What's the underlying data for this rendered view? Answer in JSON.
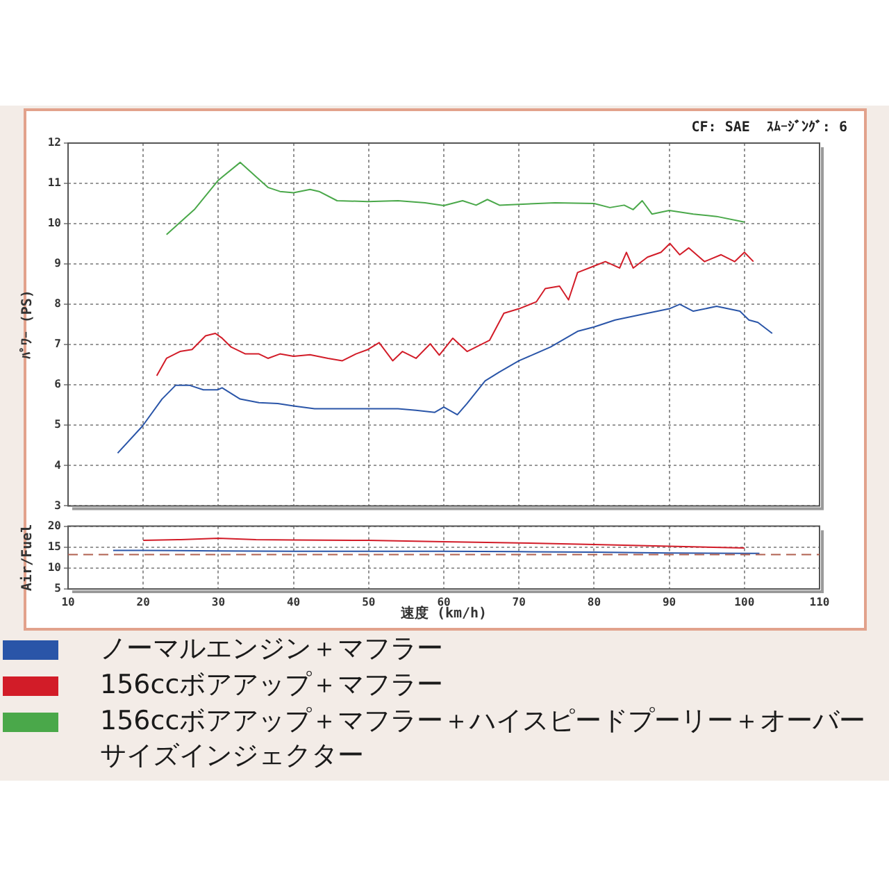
{
  "chart_data": [
    {
      "type": "line",
      "annotations": [
        "CF: SAE  ｽﾑｰｼﾞﾝｸﾞ: 6"
      ],
      "ylabel": "ﾊﾟﾜｰ (PS)",
      "xlim": [
        10,
        110
      ],
      "xticks": [
        10,
        20,
        30,
        40,
        50,
        60,
        70,
        80,
        90,
        100,
        110
      ],
      "ylim": [
        3,
        12
      ],
      "yticks": [
        3,
        4,
        5,
        6,
        7,
        8,
        9,
        10,
        11,
        12
      ],
      "tick_labels": "y",
      "grid": true,
      "legend": "bottom",
      "series": [
        {
          "name": "ノーマルエンジン＋マフラー",
          "color": "#2a55a8",
          "x": [
            16.6,
            19.9,
            22.5,
            24.3,
            26.2,
            28,
            29.9,
            30.5,
            32.9,
            35.4,
            37.9,
            40,
            42.8,
            46.5,
            50.2,
            53.9,
            56.3,
            58.8,
            60,
            61.8,
            63.1,
            65.5,
            67.4,
            70,
            74.2,
            77.8,
            80,
            82.8,
            87.1,
            90,
            91.4,
            93.2,
            96.3,
            99.4,
            100.6,
            101.8,
            103.7
          ],
          "values": [
            4.31,
            4.98,
            5.65,
            5.99,
            5.99,
            5.88,
            5.88,
            5.93,
            5.65,
            5.56,
            5.54,
            5.48,
            5.41,
            5.41,
            5.41,
            5.41,
            5.37,
            5.32,
            5.45,
            5.26,
            5.54,
            6.1,
            6.32,
            6.6,
            6.94,
            7.33,
            7.44,
            7.61,
            7.78,
            7.89,
            8.0,
            7.83,
            7.95,
            7.83,
            7.61,
            7.55,
            7.28
          ]
        },
        {
          "name": "156ccボアアップ＋マフラー",
          "color": "#d21c28",
          "x": [
            21.8,
            23.1,
            24.9,
            26.5,
            28.3,
            29.6,
            30.5,
            31.7,
            33.6,
            35.4,
            36.6,
            38.2,
            40,
            42.2,
            44.6,
            46.5,
            48.3,
            49.9,
            51.4,
            53.2,
            54.5,
            56.3,
            58.2,
            59.4,
            61.2,
            63.1,
            66.1,
            68,
            70,
            72.3,
            73.5,
            75.4,
            76.6,
            77.8,
            80,
            81.5,
            83.4,
            84.3,
            85.2,
            87.1,
            88.9,
            90.1,
            91.4,
            92.6,
            94.7,
            96.9,
            98.7,
            100,
            101.2
          ],
          "values": [
            6.23,
            6.66,
            6.83,
            6.88,
            7.22,
            7.28,
            7.16,
            6.94,
            6.77,
            6.77,
            6.66,
            6.77,
            6.71,
            6.75,
            6.66,
            6.6,
            6.77,
            6.88,
            7.05,
            6.6,
            6.83,
            6.66,
            7.02,
            6.74,
            7.16,
            6.83,
            7.11,
            7.78,
            7.89,
            8.06,
            8.39,
            8.45,
            8.11,
            8.79,
            8.95,
            9.06,
            8.9,
            9.29,
            8.9,
            9.17,
            9.29,
            9.51,
            9.23,
            9.4,
            9.06,
            9.23,
            9.06,
            9.29,
            9.06
          ]
        },
        {
          "name": "156ccボアアップ＋マフラー＋ハイスピードプーリー＋オーバーサイズインジェクター",
          "color": "#4aa84a",
          "x": [
            23.1,
            26.8,
            30,
            32.9,
            36.6,
            38.2,
            40,
            42.2,
            43.4,
            45.8,
            49.9,
            53.9,
            57.5,
            60,
            62.5,
            64.3,
            65.8,
            67.4,
            70,
            74.8,
            80,
            82.1,
            84,
            85.2,
            86.4,
            87.7,
            90,
            93.2,
            96.3,
            100
          ],
          "values": [
            9.73,
            10.35,
            11.08,
            11.52,
            10.9,
            10.8,
            10.77,
            10.85,
            10.8,
            10.57,
            10.55,
            10.57,
            10.52,
            10.45,
            10.57,
            10.46,
            10.6,
            10.46,
            10.48,
            10.52,
            10.5,
            10.4,
            10.46,
            10.35,
            10.57,
            10.24,
            10.33,
            10.24,
            10.18,
            10.04
          ]
        }
      ]
    },
    {
      "type": "line",
      "xlabel": "速度 (km/h)",
      "ylabel": "Air/Fuel",
      "xlim": [
        10,
        110
      ],
      "xticks": [
        10,
        20,
        30,
        40,
        50,
        60,
        70,
        80,
        90,
        100,
        110
      ],
      "ylim": [
        5,
        20
      ],
      "yticks": [
        5,
        10,
        15,
        20
      ],
      "grid": true,
      "ref_lines": [
        {
          "axis": "y",
          "value": 13.2,
          "color": "#b06050",
          "line_style": "dashed"
        }
      ],
      "series": [
        {
          "color": "#2a55a8",
          "x": [
            16,
            20,
            30,
            40,
            50,
            60,
            70,
            80,
            90,
            100,
            102
          ],
          "values": [
            14.2,
            14.2,
            14.1,
            14.0,
            14.0,
            14.0,
            13.9,
            13.8,
            13.6,
            13.5,
            13.5
          ]
        },
        {
          "color": "#d21c28",
          "x": [
            20,
            25,
            30,
            35,
            40,
            50,
            60,
            70,
            80,
            90,
            100
          ],
          "values": [
            16.6,
            16.8,
            17.1,
            16.8,
            16.7,
            16.6,
            16.3,
            16.0,
            15.6,
            15.2,
            14.8
          ]
        }
      ]
    }
  ]
}
